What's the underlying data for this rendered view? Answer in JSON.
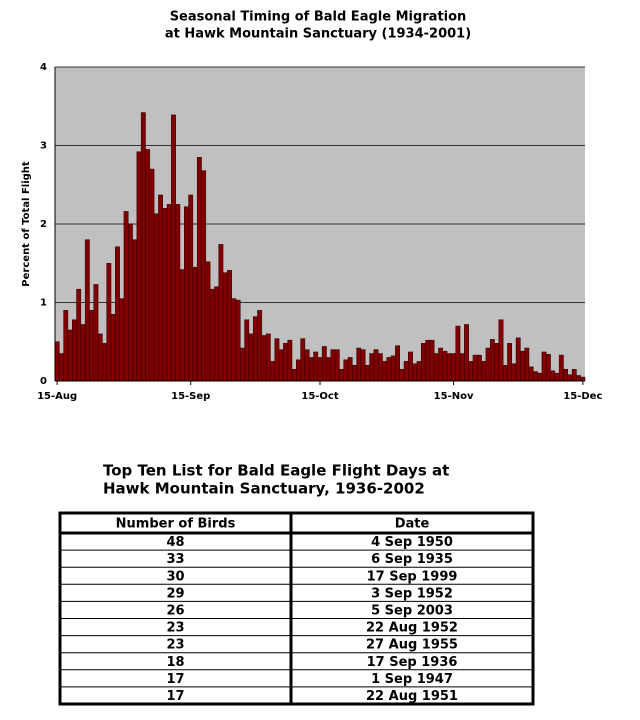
{
  "chart_data": {
    "type": "bar",
    "title": [
      "Seasonal Timing of Bald Eagle Migration",
      "at Hawk Mountain Sanctuary (1934-2001)"
    ],
    "y_label": "Percent of Total Flight",
    "categories": [
      "15-Aug",
      null,
      null,
      null,
      null,
      null,
      null,
      null,
      null,
      null,
      null,
      null,
      null,
      null,
      null,
      null,
      null,
      null,
      null,
      null,
      null,
      null,
      null,
      null,
      null,
      null,
      null,
      null,
      null,
      null,
      null,
      "15-Sep",
      null,
      null,
      null,
      null,
      null,
      null,
      null,
      null,
      null,
      null,
      null,
      null,
      null,
      null,
      null,
      null,
      null,
      null,
      null,
      null,
      null,
      null,
      null,
      null,
      null,
      null,
      null,
      null,
      null,
      "15-Oct",
      null,
      null,
      null,
      null,
      null,
      null,
      null,
      null,
      null,
      null,
      null,
      null,
      null,
      null,
      null,
      null,
      null,
      null,
      null,
      null,
      null,
      null,
      null,
      null,
      null,
      null,
      null,
      null,
      null,
      null,
      "15-Nov",
      null,
      null,
      null,
      null,
      null,
      null,
      null,
      null,
      null,
      null,
      null,
      null,
      null,
      null,
      null,
      null,
      null,
      null,
      null,
      null,
      null,
      null,
      null,
      null,
      null,
      null,
      null,
      null,
      null,
      "15-Dec"
    ],
    "values": [
      0.5,
      0.35,
      0.9,
      0.65,
      0.78,
      1.17,
      0.72,
      1.8,
      0.9,
      1.23,
      0.6,
      0.48,
      1.5,
      0.85,
      1.71,
      1.05,
      2.16,
      2.0,
      1.8,
      2.92,
      3.42,
      2.95,
      2.7,
      2.13,
      2.37,
      2.2,
      2.25,
      3.39,
      2.25,
      1.42,
      2.22,
      2.37,
      1.45,
      2.85,
      2.68,
      1.52,
      1.17,
      1.2,
      1.74,
      1.38,
      1.41,
      1.05,
      1.03,
      0.42,
      0.78,
      0.6,
      0.82,
      0.9,
      0.58,
      0.6,
      0.25,
      0.54,
      0.4,
      0.48,
      0.52,
      0.15,
      0.27,
      0.54,
      0.4,
      0.3,
      0.37,
      0.3,
      0.44,
      0.3,
      0.4,
      0.4,
      0.15,
      0.27,
      0.3,
      0.2,
      0.42,
      0.4,
      0.2,
      0.35,
      0.4,
      0.35,
      0.25,
      0.3,
      0.32,
      0.45,
      0.15,
      0.25,
      0.37,
      0.22,
      0.25,
      0.48,
      0.52,
      0.52,
      0.35,
      0.42,
      0.38,
      0.35,
      0.35,
      0.7,
      0.35,
      0.72,
      0.25,
      0.33,
      0.33,
      0.25,
      0.42,
      0.53,
      0.48,
      0.78,
      0.2,
      0.48,
      0.22,
      0.55,
      0.38,
      0.42,
      0.18,
      0.12,
      0.1,
      0.37,
      0.34,
      0.13,
      0.1,
      0.33,
      0.15,
      0.08,
      0.15,
      0.07,
      0.05
    ],
    "color": "#800000",
    "ylim": [
      0,
      4
    ],
    "yticks": [
      0,
      1,
      2,
      3,
      4
    ],
    "grid": true
  },
  "table": {
    "title": [
      "Top Ten List for Bald Eagle Flight Days at",
      "Hawk Mountain Sanctuary, 1936-2002"
    ],
    "headers": [
      "Number of Birds",
      "Date"
    ],
    "rows": [
      [
        "48",
        "4 Sep 1950"
      ],
      [
        "33",
        "6 Sep 1935"
      ],
      [
        "30",
        "17 Sep 1999"
      ],
      [
        "29",
        "3 Sep 1952"
      ],
      [
        "26",
        "5 Sep 2003"
      ],
      [
        "23",
        "22 Aug 1952"
      ],
      [
        "23",
        "27 Aug 1955"
      ],
      [
        "18",
        "17 Sep 1936"
      ],
      [
        "17",
        "1 Sep 1947"
      ],
      [
        "17",
        "22 Aug 1951"
      ]
    ]
  }
}
